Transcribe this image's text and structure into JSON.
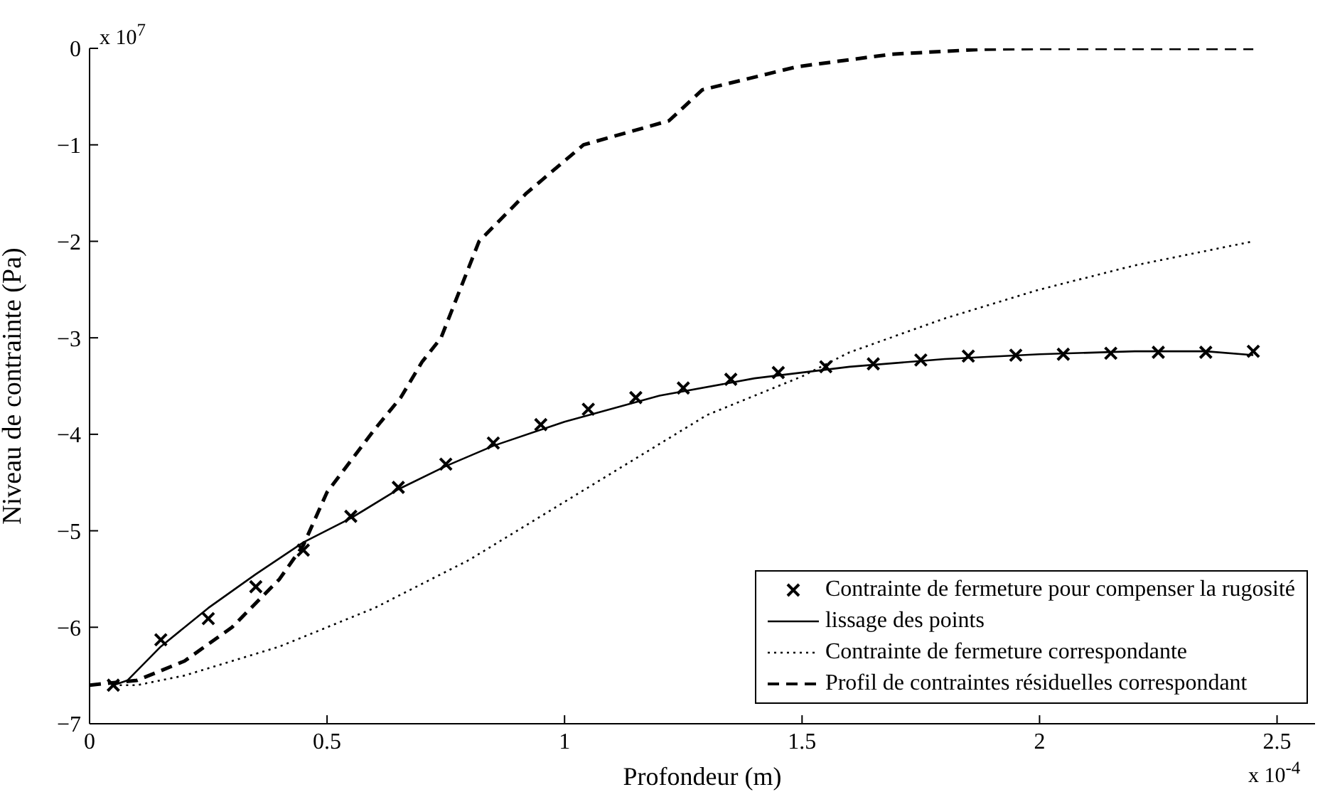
{
  "chart_data": {
    "type": "line",
    "xlabel": "Profondeur (m)",
    "ylabel": "Niveau de contrainte (Pa)",
    "annotations": [
      "x 10$^{7}$",
      "x 10$^{-4}$"
    ],
    "xlim": [
      0,
      2.58
    ],
    "xticks": [
      0,
      0.5,
      1,
      1.5,
      2,
      2.5
    ],
    "ylim": [
      -7,
      0
    ],
    "yticks": [
      -7,
      -6,
      -5,
      -4,
      -3,
      -2,
      -1,
      0
    ],
    "grid": false,
    "legend": "bottom right",
    "series": [
      {
        "name": "Contrainte de fermeture pour compenser la rugosité",
        "type": "scatter",
        "marker": "cross",
        "color": "#000000",
        "x": [
          0.05,
          0.15,
          0.25,
          0.35,
          0.45,
          0.55,
          0.65,
          0.75,
          0.85,
          0.95,
          1.05,
          1.15,
          1.25,
          1.35,
          1.45,
          1.55,
          1.65,
          1.75,
          1.85,
          1.95,
          2.05,
          2.15,
          2.25,
          2.35,
          2.45
        ],
        "values": [
          -6.6,
          -6.13,
          -5.91,
          -5.58,
          -5.2,
          -4.85,
          -4.55,
          -4.31,
          -4.09,
          -3.9,
          -3.74,
          -3.62,
          -3.52,
          -3.43,
          -3.36,
          -3.3,
          -3.27,
          -3.23,
          -3.19,
          -3.18,
          -3.17,
          -3.16,
          -3.15,
          -3.15,
          -3.14
        ]
      },
      {
        "name": "lissage des points",
        "line_style": "solid",
        "color": "#000000",
        "x": [
          0.05,
          0.08,
          0.15,
          0.25,
          0.35,
          0.45,
          0.55,
          0.65,
          0.75,
          0.85,
          1.0,
          1.2,
          1.4,
          1.6,
          1.8,
          2.0,
          2.2,
          2.35,
          2.45
        ],
        "values": [
          -6.6,
          -6.55,
          -6.2,
          -5.8,
          -5.45,
          -5.12,
          -4.87,
          -4.57,
          -4.33,
          -4.12,
          -3.87,
          -3.6,
          -3.42,
          -3.3,
          -3.22,
          -3.17,
          -3.14,
          -3.14,
          -3.18
        ]
      },
      {
        "name": "Contrainte de fermeture correspondante",
        "line_style": "dotted",
        "color": "#000000",
        "x": [
          0.05,
          0.1,
          0.2,
          0.3,
          0.4,
          0.5,
          0.6,
          0.7,
          0.8,
          0.9,
          1.0,
          1.1,
          1.2,
          1.3,
          1.4,
          1.5,
          1.6,
          1.8,
          2.0,
          2.2,
          2.45
        ],
        "values": [
          -6.6,
          -6.6,
          -6.5,
          -6.35,
          -6.2,
          -6.0,
          -5.8,
          -5.55,
          -5.3,
          -5.0,
          -4.7,
          -4.4,
          -4.1,
          -3.8,
          -3.6,
          -3.4,
          -3.15,
          -2.8,
          -2.5,
          -2.25,
          -2.0
        ]
      },
      {
        "name": "Profil de contraintes résiduelles correspondant",
        "line_style": "dashed",
        "color": "#000000",
        "x": [
          0,
          0.1,
          0.2,
          0.3,
          0.4,
          0.45,
          0.5,
          0.6,
          0.655,
          0.7,
          0.74,
          0.82,
          0.92,
          1.04,
          1.22,
          1.29,
          1.49,
          1.69,
          1.88,
          2.0,
          2.45
        ],
        "values": [
          -6.6,
          -6.55,
          -6.35,
          -6.0,
          -5.5,
          -5.15,
          -4.6,
          -3.95,
          -3.62,
          -3.25,
          -3.0,
          -2.0,
          -1.5,
          -1.0,
          -0.75,
          -0.43,
          -0.19,
          -0.06,
          -0.01,
          0,
          0
        ]
      }
    ]
  }
}
